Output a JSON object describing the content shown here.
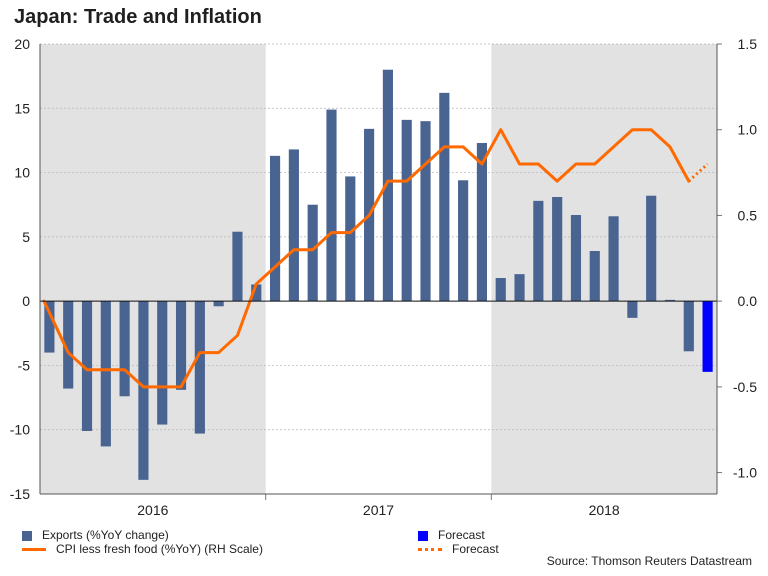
{
  "title": "Japan: Trade and Inflation",
  "source": "Source: Thomson Reuters Datastream",
  "legend": {
    "exports": "Exports (%YoY change)",
    "exports_forecast": "Forecast",
    "cpi": "CPI less fresh food (%YoY) (RH Scale)",
    "cpi_forecast": "Forecast"
  },
  "colors": {
    "bar": "#4a6491",
    "bar_forecast": "#0000ff",
    "line": "#ff6a00",
    "shade": "#e2e2e2",
    "grid": "#b4b4b4"
  },
  "chart_data": {
    "type": "bar+line",
    "title": "Japan: Trade and Inflation",
    "x_groups": [
      {
        "label": "2016",
        "months": 12,
        "shaded": true
      },
      {
        "label": "2017",
        "months": 12,
        "shaded": false
      },
      {
        "label": "2018",
        "months": 12,
        "shaded": true
      }
    ],
    "left_axis": {
      "min": -15,
      "max": 20,
      "ticks": [
        20,
        15,
        10,
        5,
        0,
        -5,
        -10,
        -15
      ],
      "tick_labels": [
        "20",
        "15",
        "10",
        "5",
        "0",
        "-5",
        "-10",
        "-15"
      ]
    },
    "right_axis": {
      "min": -1.125,
      "max": 1.5,
      "ticks": [
        1.5,
        1.0,
        0.5,
        0.0,
        -0.5,
        -1.0
      ],
      "tick_labels": [
        "1.5",
        "1.0",
        "0.5",
        "0.0",
        "-0.5",
        "-1.0"
      ]
    },
    "exports": [
      -4.0,
      -6.8,
      -10.1,
      -11.3,
      -7.4,
      -13.9,
      -9.6,
      -6.9,
      -10.3,
      -0.4,
      5.4,
      1.3,
      11.3,
      11.8,
      7.5,
      14.9,
      9.7,
      13.4,
      18.0,
      14.1,
      14.0,
      16.2,
      9.4,
      12.3,
      1.8,
      2.1,
      7.8,
      8.1,
      6.7,
      3.9,
      6.6,
      -1.3,
      8.2,
      0.1,
      -3.9
    ],
    "exports_forecast": [
      {
        "index": 35,
        "value": -5.5
      }
    ],
    "cpi": [
      0.0,
      -0.3,
      -0.4,
      -0.4,
      -0.4,
      -0.5,
      -0.5,
      -0.5,
      -0.3,
      -0.3,
      -0.2,
      0.1,
      0.2,
      0.3,
      0.3,
      0.4,
      0.4,
      0.5,
      0.7,
      0.7,
      0.8,
      0.9,
      0.9,
      0.8,
      1.0,
      0.8,
      0.8,
      0.7,
      0.8,
      0.8,
      0.9,
      1.0,
      1.0,
      0.9,
      0.7
    ],
    "cpi_forecast": [
      {
        "index": 34,
        "value": 0.7
      },
      {
        "index": 35,
        "value": 0.8
      }
    ]
  }
}
